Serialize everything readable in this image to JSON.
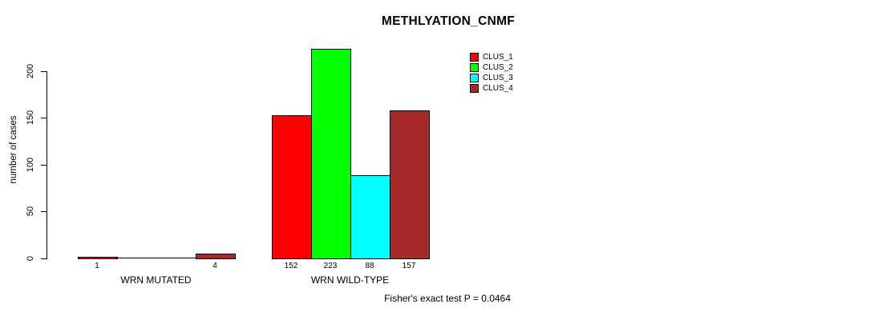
{
  "chart_data": {
    "type": "bar",
    "title": "METHLYATION_CNMF",
    "ylabel": "number of cases",
    "xlabel": "",
    "ylim": [
      0,
      200
    ],
    "yticks": [
      0,
      50,
      100,
      150,
      200
    ],
    "grid": false,
    "legend_position": "top-right-of-plot",
    "series": [
      {
        "name": "CLUS_1",
        "color": "#FF0000"
      },
      {
        "name": "CLUS_2",
        "color": "#00FF00"
      },
      {
        "name": "CLUS_3",
        "color": "#00FFFF"
      },
      {
        "name": "CLUS_4",
        "color": "#A52A2A"
      }
    ],
    "categories": [
      "WRN MUTATED",
      "WRN WILD-TYPE"
    ],
    "groups": [
      {
        "label": "WRN MUTATED",
        "values": [
          1,
          0,
          0,
          4
        ],
        "value_labels": [
          "1",
          "",
          "",
          "4"
        ]
      },
      {
        "label": "WRN WILD-TYPE",
        "values": [
          152,
          223,
          88,
          157
        ],
        "value_labels": [
          "152",
          "223",
          "88",
          "157"
        ]
      }
    ],
    "footnote": "Fisher's exact test P = 0.0464",
    "bar_border_color": "#000000",
    "axis_color": "#000000",
    "background_color": "#FFFFFF"
  }
}
